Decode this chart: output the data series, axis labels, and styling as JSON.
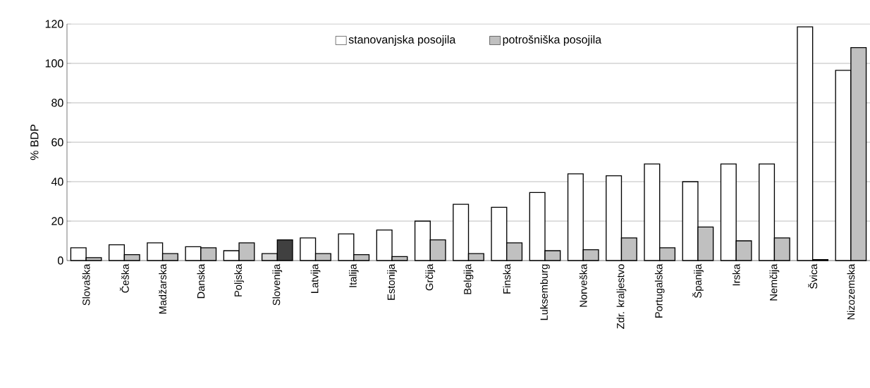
{
  "chart_data": {
    "type": "bar",
    "ylabel": "% BDP",
    "categories": [
      "Slovaška",
      "Češka",
      "Madžarska",
      "Danska",
      "Poljska",
      "Slovenija",
      "Latvija",
      "Italija",
      "Estonija",
      "Grčija",
      "Belgija",
      "Finska",
      "Luksemburg",
      "Norveška",
      "Zdr. kraljestvo",
      "Portugalska",
      "Španija",
      "Irska",
      "Nemčija",
      "Švica",
      "Nizozemska"
    ],
    "series": [
      {
        "name": "stanovanjska posojila",
        "color": "#ffffff",
        "colors": [
          "#ffffff",
          "#ffffff",
          "#ffffff",
          "#ffffff",
          "#ffffff",
          "#d9d9d9",
          "#ffffff",
          "#ffffff",
          "#ffffff",
          "#ffffff",
          "#ffffff",
          "#ffffff",
          "#ffffff",
          "#ffffff",
          "#ffffff",
          "#ffffff",
          "#ffffff",
          "#ffffff",
          "#ffffff",
          "#ffffff",
          "#ffffff"
        ],
        "values": [
          6.5,
          8,
          9,
          7,
          5,
          3.5,
          11.5,
          13.5,
          15.5,
          20,
          28.5,
          27,
          34.5,
          44,
          43,
          49,
          40,
          49,
          49,
          118.5,
          96.5
        ]
      },
      {
        "name": "potrošniška posojila",
        "color": "#c0c0c0",
        "colors": [
          "#c0c0c0",
          "#c0c0c0",
          "#c0c0c0",
          "#c0c0c0",
          "#c0c0c0",
          "#404040",
          "#c0c0c0",
          "#c0c0c0",
          "#c0c0c0",
          "#c0c0c0",
          "#c0c0c0",
          "#c0c0c0",
          "#c0c0c0",
          "#c0c0c0",
          "#c0c0c0",
          "#c0c0c0",
          "#c0c0c0",
          "#c0c0c0",
          "#c0c0c0",
          "#c0c0c0",
          "#c0c0c0"
        ],
        "values": [
          1.5,
          3,
          3.5,
          6.5,
          9,
          10.5,
          3.5,
          3,
          2,
          10.5,
          3.5,
          9,
          5,
          5.5,
          11.5,
          6.5,
          17,
          10,
          11.5,
          0.5,
          108
        ]
      }
    ],
    "ylim": [
      0,
      120
    ],
    "yticks": [
      0,
      20,
      40,
      60,
      80,
      100,
      120
    ],
    "grid": "y",
    "legend": "top"
  }
}
